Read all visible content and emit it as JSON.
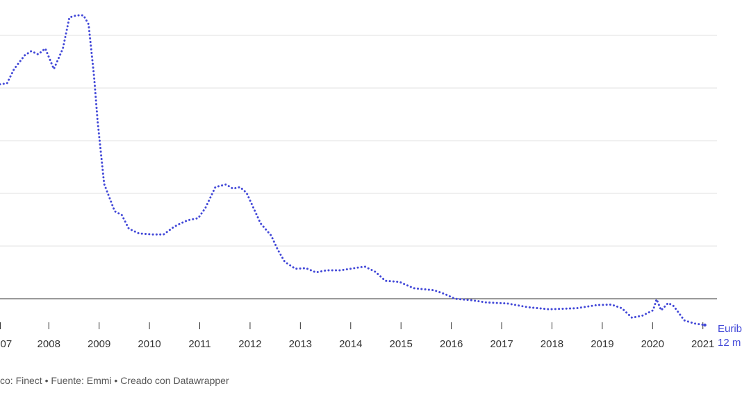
{
  "chart_data": {
    "type": "line",
    "x": [
      2007.03,
      2007.17,
      2007.31,
      2007.52,
      2007.65,
      2007.79,
      2007.93,
      2008.1,
      2008.28,
      2008.41,
      2008.55,
      2008.69,
      2008.79,
      2008.9,
      2008.97,
      2009.1,
      2009.31,
      2009.45,
      2009.59,
      2009.79,
      2010.07,
      2010.28,
      2010.48,
      2010.62,
      2010.76,
      2010.97,
      2011.11,
      2011.31,
      2011.52,
      2011.66,
      2011.8,
      2011.93,
      2012.07,
      2012.21,
      2012.42,
      2012.55,
      2012.69,
      2012.9,
      2013.11,
      2013.31,
      2013.52,
      2013.8,
      2014.0,
      2014.28,
      2014.49,
      2014.69,
      2014.97,
      2015.25,
      2015.66,
      2015.87,
      2016.07,
      2016.42,
      2016.69,
      2017.11,
      2017.52,
      2017.94,
      2018.49,
      2018.9,
      2019.18,
      2019.39,
      2019.59,
      2019.8,
      2020.01,
      2020.08,
      2020.17,
      2020.31,
      2020.42,
      2020.63,
      2020.83,
      2021.04
    ],
    "series": [
      {
        "name": [
          "Euribo",
          "12 m"
        ],
        "color": "#4349d8",
        "values": [
          4.07,
          4.09,
          4.36,
          4.62,
          4.7,
          4.64,
          4.75,
          4.36,
          4.75,
          5.34,
          5.38,
          5.38,
          5.21,
          4.22,
          3.37,
          2.18,
          1.66,
          1.59,
          1.33,
          1.24,
          1.22,
          1.22,
          1.36,
          1.43,
          1.49,
          1.53,
          1.72,
          2.12,
          2.17,
          2.09,
          2.12,
          2.01,
          1.72,
          1.43,
          1.2,
          0.93,
          0.7,
          0.57,
          0.58,
          0.5,
          0.54,
          0.54,
          0.57,
          0.61,
          0.51,
          0.34,
          0.32,
          0.2,
          0.16,
          0.09,
          0.0,
          -0.03,
          -0.07,
          -0.09,
          -0.16,
          -0.2,
          -0.18,
          -0.12,
          -0.11,
          -0.18,
          -0.36,
          -0.32,
          -0.22,
          -0.01,
          -0.22,
          -0.08,
          -0.14,
          -0.41,
          -0.47,
          -0.5
        ]
      }
    ],
    "xlim": [
      2007.03,
      2021.28
    ],
    "xticks": [
      {
        "value": 2007,
        "label": "07"
      },
      2008,
      2009,
      2010,
      2011,
      2012,
      2013,
      2014,
      2015,
      2016,
      2017,
      2018,
      2019,
      2020,
      2021
    ],
    "ylim": [
      -0.5,
      5.5
    ],
    "yticks": [
      0,
      1,
      2,
      3,
      4,
      5
    ],
    "grid": true,
    "footer": "co: Finect • Fuente: Emmi • Creado con Datawrapper"
  }
}
